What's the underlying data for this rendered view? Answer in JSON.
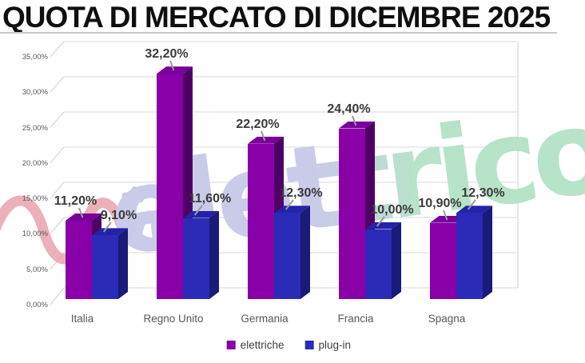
{
  "title": "QUOTA DI MERCATO DI DICEMBRE 2025",
  "watermark": {
    "text": "elettrico",
    "script_squiggle": "vai-script-wave",
    "colors": {
      "wave_pink": "#e8a2ad",
      "script_periwinkle": "#c6c8e7",
      "text_left": "#cacbe9",
      "text_right": "#b7e3c9"
    }
  },
  "chart_data": {
    "type": "bar",
    "style": "3d-clustered-column",
    "title": "QUOTA DI MERCATO DI DICEMBRE 2025",
    "categories": [
      "Italia",
      "Regno Unito",
      "Germania",
      "Francia",
      "Spagna"
    ],
    "series": [
      {
        "name": "elettriche",
        "color": "#8A00A8",
        "color_top": "#79009A",
        "color_side": "#4E0064",
        "values": [
          11.2,
          32.2,
          22.2,
          24.4,
          10.9
        ],
        "labels": [
          "11,20%",
          "32,20%",
          "22,20%",
          "24,40%",
          "10,90%"
        ]
      },
      {
        "name": "plug-in",
        "color": "#2B2BB8",
        "color_top": "#2323A8",
        "color_side": "#1A1A78",
        "values": [
          9.1,
          11.6,
          12.3,
          10.0,
          12.3
        ],
        "labels": [
          "9,10%",
          "11,60%",
          "12,30%",
          "10,00%",
          "12,30%"
        ]
      }
    ],
    "y_ticks": [
      "0,00%",
      "5,00%",
      "10,00%",
      "15,00%",
      "20,00%",
      "25,00%",
      "30,00%",
      "35,00%"
    ],
    "ylim": [
      0,
      35
    ],
    "xlabel": "",
    "ylabel": "",
    "grid": true,
    "legend_position": "bottom"
  }
}
